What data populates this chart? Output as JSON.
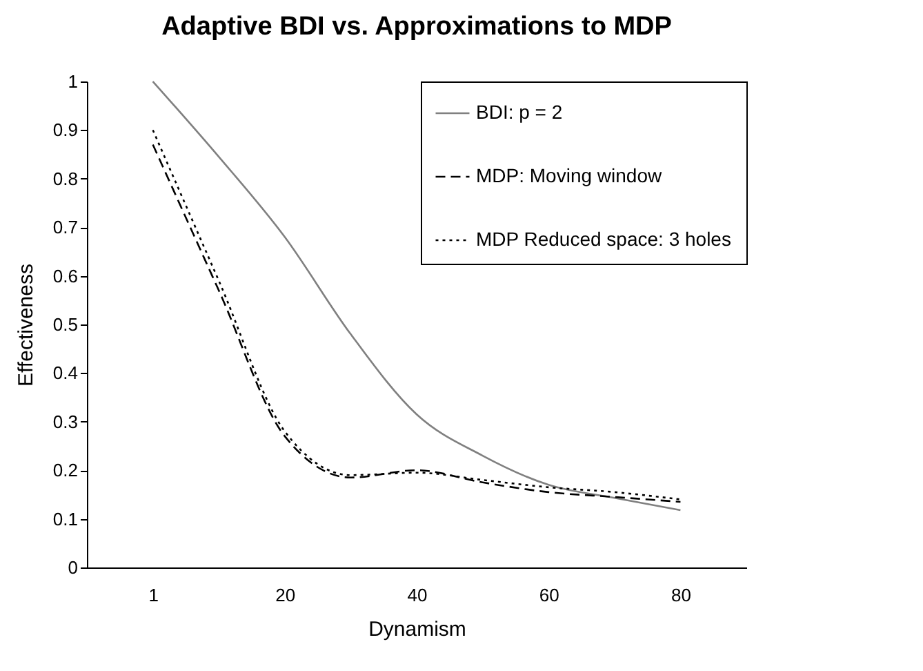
{
  "chart_data": {
    "type": "line",
    "title": "Adaptive BDI vs. Approximations to MDP",
    "xlabel": "Dynamism",
    "ylabel": "Effectiveness",
    "categories": [
      "1",
      null,
      "20",
      null,
      "40",
      null,
      "60",
      null,
      "80"
    ],
    "series": [
      {
        "name": "BDI: p = 2",
        "color": "#808080",
        "line_style": "solid",
        "values": [
          1.0,
          0.845,
          0.68,
          0.48,
          0.315,
          0.23,
          0.17,
          0.143,
          0.118
        ]
      },
      {
        "name": "MDP: Moving window",
        "color": "#000000",
        "line_style": "dashed",
        "values": [
          0.87,
          0.57,
          0.27,
          0.185,
          0.2,
          0.175,
          0.155,
          0.145,
          0.135
        ]
      },
      {
        "name": "MDP Reduced space: 3 holes",
        "color": "#000000",
        "line_style": "dotted",
        "values": [
          0.9,
          0.59,
          0.28,
          0.19,
          0.195,
          0.18,
          0.165,
          0.155,
          0.14
        ]
      }
    ],
    "ylim": [
      0,
      1
    ],
    "yticks": [
      0,
      0.1,
      0.2,
      0.3,
      0.4,
      0.5,
      0.6,
      0.7,
      0.8,
      0.9,
      1
    ],
    "grid": false,
    "legend": "top right"
  }
}
